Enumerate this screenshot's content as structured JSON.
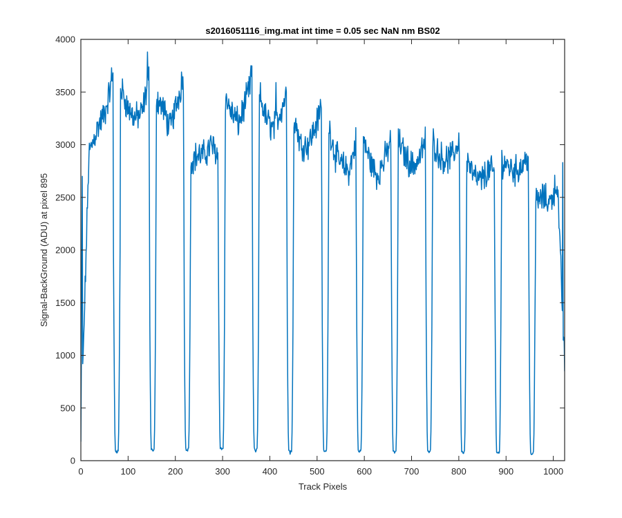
{
  "chart_data": {
    "type": "line",
    "title": "s2016051116_img.mat int time = 0.05 sec  NaN nm BS02",
    "xlabel": "Track Pixels",
    "ylabel": "Signal-BackGround (ADU) at pixel 895",
    "xlim": [
      0,
      1024
    ],
    "ylim": [
      0,
      4000
    ],
    "xticks": [
      0,
      100,
      200,
      300,
      400,
      500,
      600,
      700,
      800,
      900,
      1000
    ],
    "yticks": [
      0,
      500,
      1000,
      1500,
      2000,
      2500,
      3000,
      3500,
      4000
    ],
    "grid": false,
    "box": true,
    "series": [
      {
        "color": "#0072BD",
        "dips": [
          {
            "center": 76,
            "min": 60
          },
          {
            "center": 152,
            "min": 80
          },
          {
            "center": 225,
            "min": 80
          },
          {
            "center": 298,
            "min": 90
          },
          {
            "center": 370,
            "min": 80
          },
          {
            "center": 443,
            "min": 60
          },
          {
            "center": 517,
            "min": 70
          },
          {
            "center": 590,
            "min": 70
          },
          {
            "center": 664,
            "min": 60
          },
          {
            "center": 737,
            "min": 70
          },
          {
            "center": 809,
            "min": 60
          },
          {
            "center": 883,
            "min": 50
          },
          {
            "center": 955,
            "min": 40
          }
        ],
        "plateaus": [
          {
            "x_start": 0,
            "x_end": 68,
            "levels": [
              200,
              2900,
              3150,
              3300,
              3650
            ]
          },
          {
            "x_start": 84,
            "x_end": 145,
            "levels": [
              3550,
              3350,
              3250,
              3300,
              3650
            ]
          },
          {
            "x_start": 159,
            "x_end": 218,
            "levels": [
              3450,
              3350,
              3150,
              3400,
              3650
            ]
          },
          {
            "x_start": 232,
            "x_end": 291,
            "levels": [
              2850,
              2900,
              2900,
              3000,
              2900
            ]
          },
          {
            "x_start": 305,
            "x_end": 363,
            "levels": [
              3450,
              3300,
              3200,
              3400,
              3650
            ]
          },
          {
            "x_start": 377,
            "x_end": 436,
            "levels": [
              3500,
              3250,
              3150,
              3300,
              3500
            ]
          },
          {
            "x_start": 450,
            "x_end": 510,
            "levels": [
              3300,
              3000,
              3000,
              3150,
              3350
            ]
          },
          {
            "x_start": 524,
            "x_end": 583,
            "levels": [
              3200,
              2900,
              2800,
              2750,
              3050
            ]
          },
          {
            "x_start": 597,
            "x_end": 657,
            "levels": [
              3050,
              2850,
              2700,
              2850,
              3050
            ]
          },
          {
            "x_start": 671,
            "x_end": 730,
            "levels": [
              3050,
              2900,
              2800,
              2850,
              3050
            ]
          },
          {
            "x_start": 744,
            "x_end": 802,
            "levels": [
              3050,
              2900,
              2850,
              2900,
              3050
            ]
          },
          {
            "x_start": 816,
            "x_end": 876,
            "levels": [
              2900,
              2700,
              2650,
              2750,
              2750
            ]
          },
          {
            "x_start": 890,
            "x_end": 948,
            "levels": [
              2850,
              2800,
              2750,
              2800,
              2900
            ]
          },
          {
            "x_start": 962,
            "x_end": 1024,
            "levels": [
              2450,
              2500,
              2450,
              2650,
              900
            ]
          }
        ],
        "peak_values": [
          {
            "x": 65,
            "y": 3730
          },
          {
            "x": 141,
            "y": 3880
          },
          {
            "x": 213,
            "y": 3690
          },
          {
            "x": 360,
            "y": 3750
          },
          {
            "x": 413,
            "y": 3590
          },
          {
            "x": 507,
            "y": 3430
          },
          {
            "x": 1020,
            "y": 2830
          }
        ]
      }
    ]
  }
}
